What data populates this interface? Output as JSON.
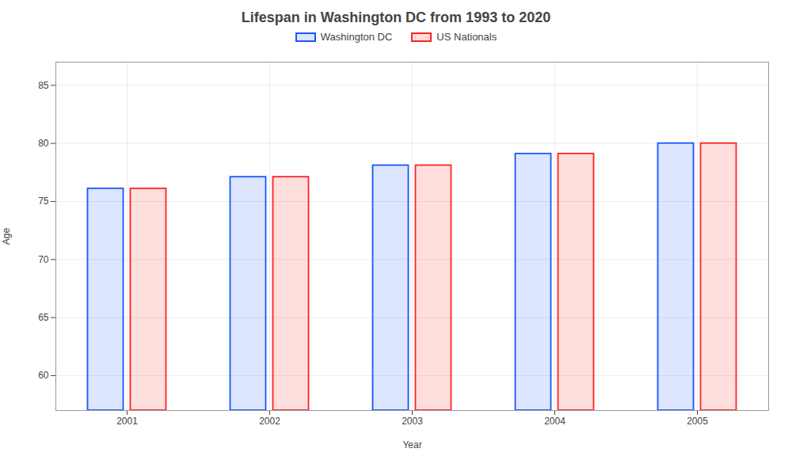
{
  "chart_data": {
    "type": "bar",
    "title": "Lifespan in Washington DC from 1993 to 2020",
    "xlabel": "Year",
    "ylabel": "Age",
    "categories": [
      "2001",
      "2002",
      "2003",
      "2004",
      "2005"
    ],
    "series": [
      {
        "name": "Washington DC",
        "color": "#1a56ff",
        "values": [
          76.1,
          77.1,
          78.1,
          79.1,
          80.0
        ]
      },
      {
        "name": "US Nationals",
        "color": "#ff2222",
        "values": [
          76.1,
          77.1,
          78.1,
          79.1,
          80.0
        ]
      }
    ],
    "ylim": [
      57,
      87
    ],
    "yticks": [
      60,
      65,
      70,
      75,
      80,
      85
    ],
    "grid": true,
    "legend": "top"
  }
}
